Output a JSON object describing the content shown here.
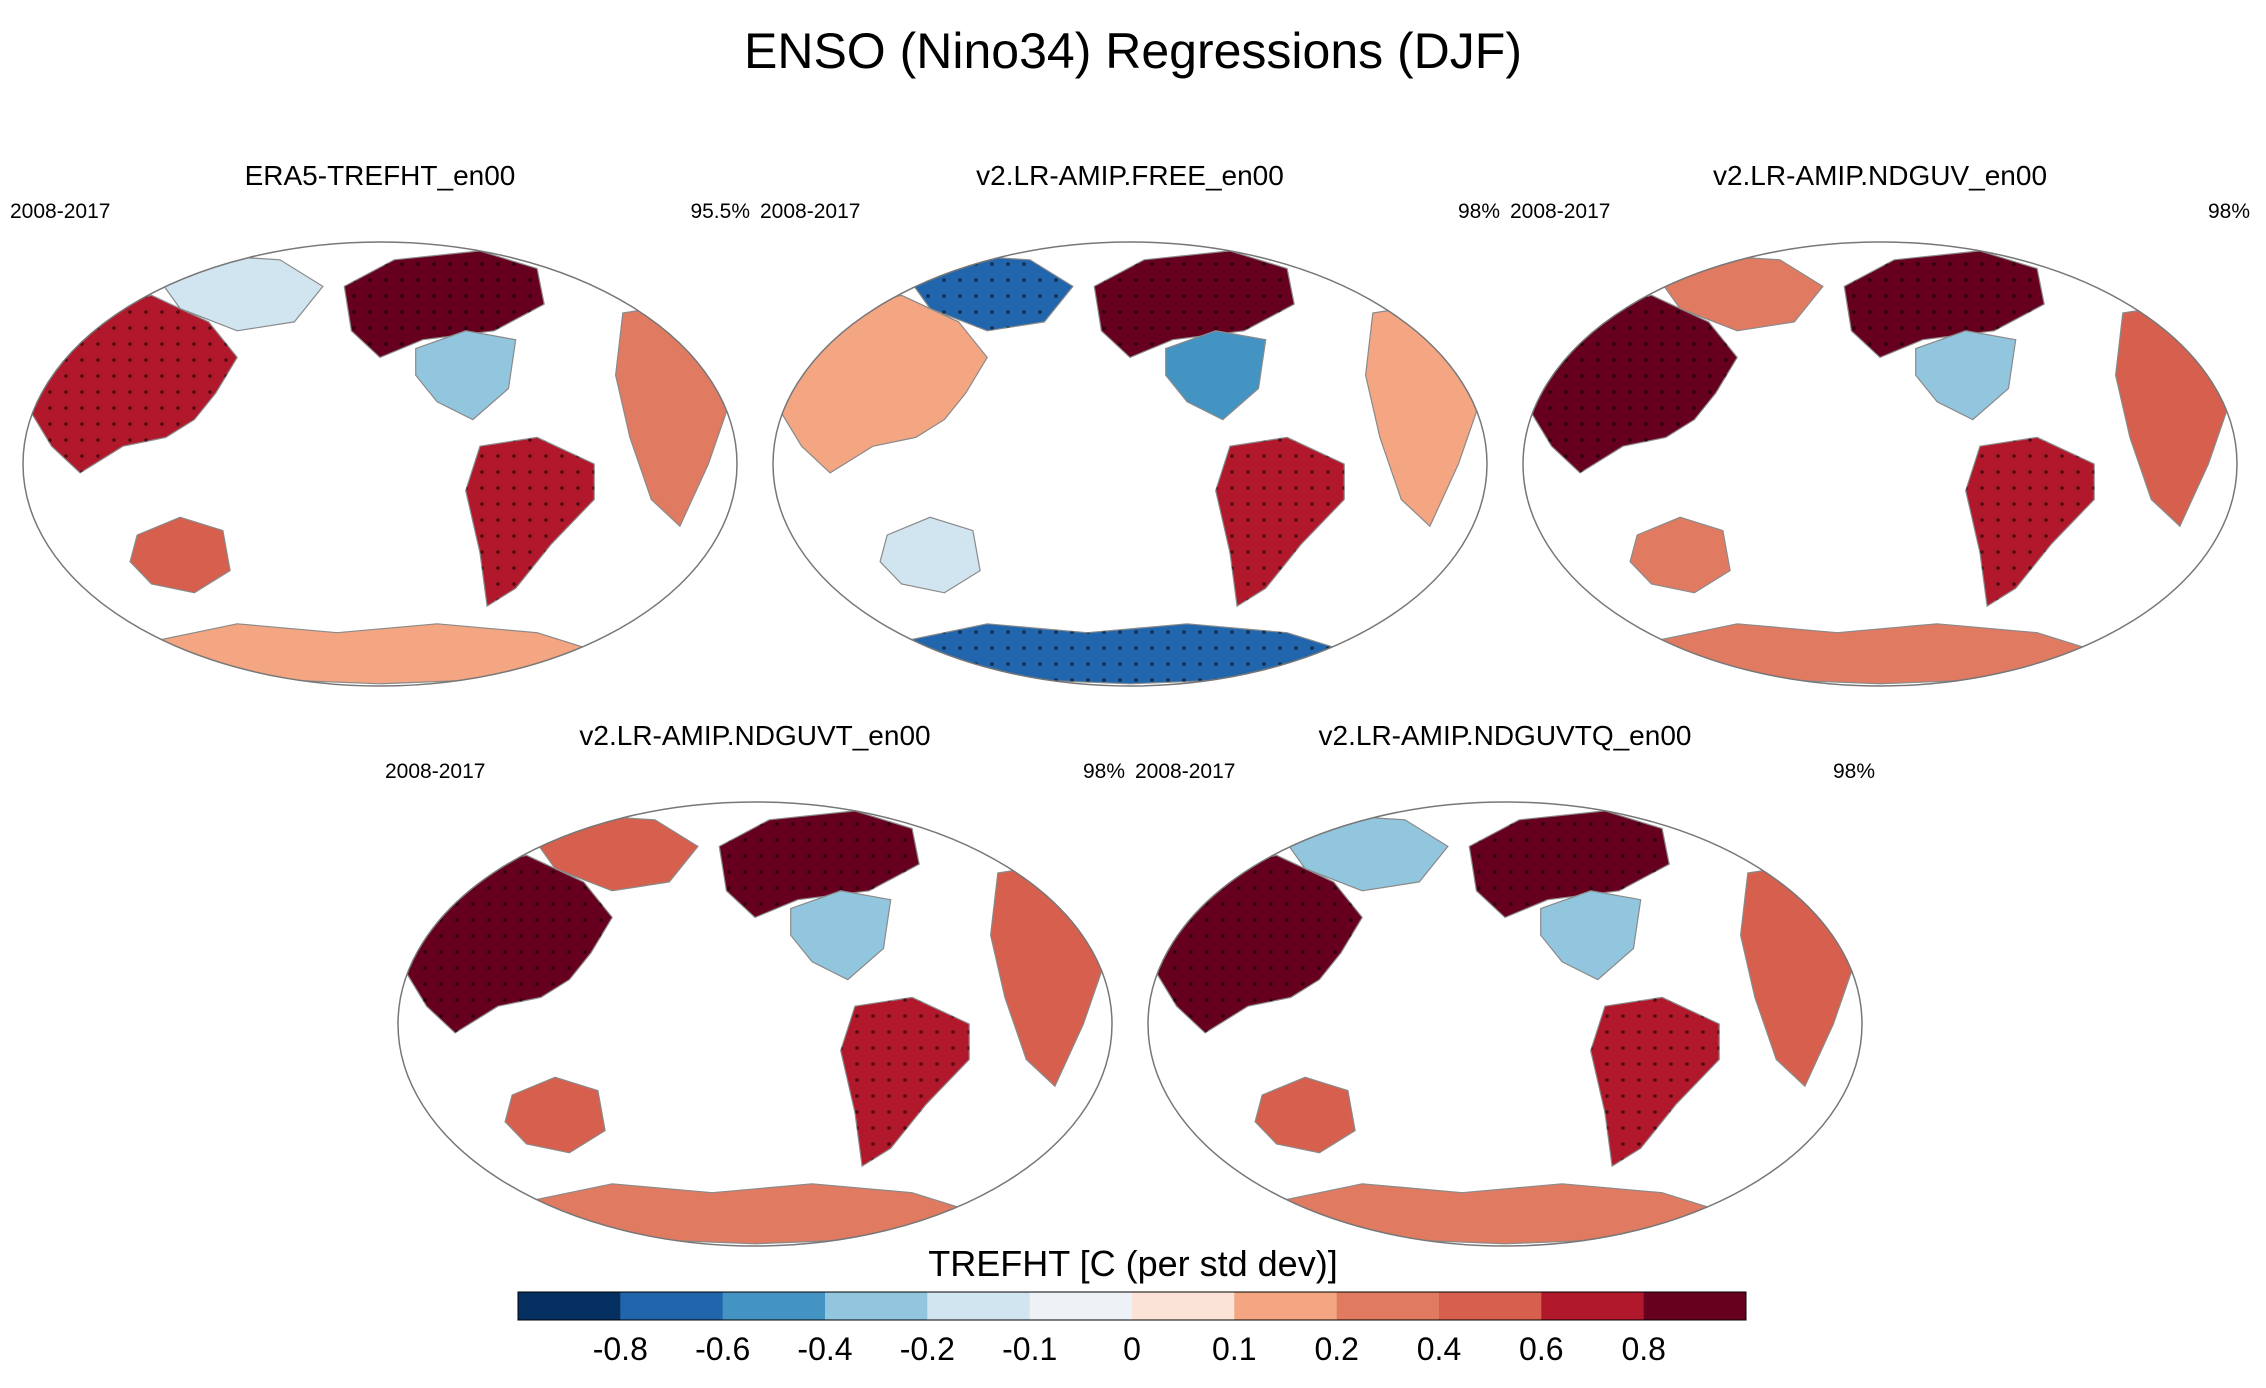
{
  "title": "ENSO (Nino34) Regressions (DJF)",
  "colors": {
    "ocean": "#ffffff",
    "coast": "#8a8a8a",
    "outline": "#777777",
    "stipple": "#000000"
  },
  "panels": [
    {
      "name": "ERA5-TREFHT_en00",
      "years": "2008-2017",
      "pct": "95.5%",
      "regions": {
        "eurasia": 0.6,
        "siberia": -0.2,
        "north_america": 0.9,
        "us": -0.3,
        "south_america": 0.7,
        "africa": 0.3,
        "australia": 0.5,
        "antarctica": 0.1
      }
    },
    {
      "name": "v2.LR-AMIP.FREE_en00",
      "years": "2008-2017",
      "pct": "98%",
      "regions": {
        "eurasia": 0.15,
        "siberia": -0.8,
        "north_america": 0.9,
        "us": -0.5,
        "south_america": 0.6,
        "africa": 0.15,
        "australia": -0.2,
        "antarctica": -0.7
      }
    },
    {
      "name": "v2.LR-AMIP.NDGUV_en00",
      "years": "2008-2017",
      "pct": "98%",
      "regions": {
        "eurasia": 0.8,
        "siberia": 0.3,
        "north_america": 0.9,
        "us": -0.3,
        "south_america": 0.6,
        "africa": 0.5,
        "australia": 0.3,
        "antarctica": 0.2
      }
    },
    {
      "name": "v2.LR-AMIP.NDGUVT_en00",
      "years": "2008-2017",
      "pct": "98%",
      "regions": {
        "eurasia": 0.8,
        "siberia": 0.5,
        "north_america": 0.9,
        "us": -0.3,
        "south_america": 0.7,
        "africa": 0.5,
        "australia": 0.4,
        "antarctica": 0.3
      }
    },
    {
      "name": "v2.LR-AMIP.NDGUVTQ_en00",
      "years": "2008-2017",
      "pct": "98%",
      "regions": {
        "eurasia": 0.8,
        "siberia": -0.3,
        "north_america": 0.9,
        "us": -0.3,
        "south_america": 0.7,
        "africa": 0.5,
        "australia": 0.4,
        "antarctica": 0.3
      }
    }
  ],
  "colorbar": {
    "title": "TREFHT [C (per std dev)]",
    "ticks": [
      "-0.8",
      "-0.6",
      "-0.4",
      "-0.2",
      "-0.1",
      "0",
      "0.1",
      "0.2",
      "0.4",
      "0.6",
      "0.8"
    ],
    "colors": [
      "#053061",
      "#2166ac",
      "#4393c3",
      "#92c5de",
      "#d1e5f0",
      "#eef2f7",
      "#fbe3d8",
      "#f4a582",
      "#e07b62",
      "#d6604d",
      "#b2182b",
      "#67001f"
    ]
  }
}
